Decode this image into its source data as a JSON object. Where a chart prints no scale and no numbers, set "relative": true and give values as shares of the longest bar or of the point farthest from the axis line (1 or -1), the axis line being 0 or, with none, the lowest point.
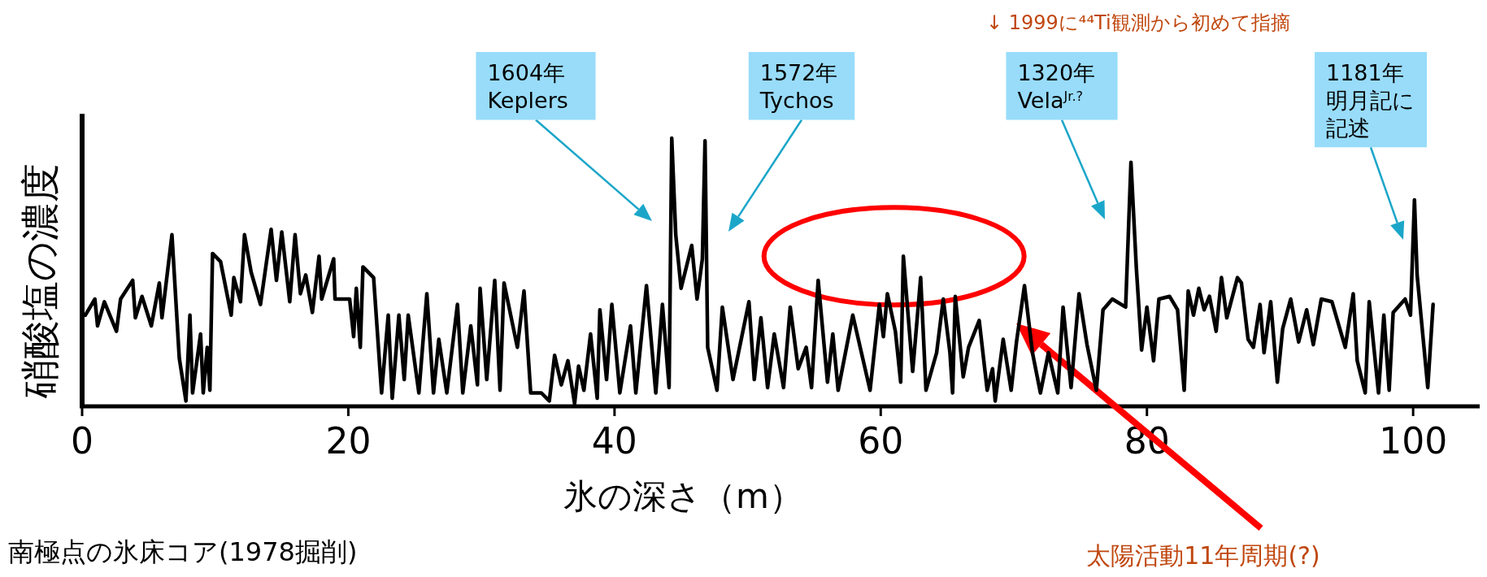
{
  "chart_data": {
    "type": "line",
    "relative": true,
    "xlabel": "氷の深さ（m）",
    "ylabel": "硝酸塩の濃度",
    "xlim": [
      0,
      105
    ],
    "xticks": [
      0,
      20,
      40,
      60,
      80,
      100
    ],
    "grid": false,
    "marker": "none",
    "line_style": "solid",
    "x": [
      0.24,
      0.96,
      1.16,
      1.67,
      2.58,
      2.89,
      3.8,
      4.0,
      4.5,
      5.2,
      5.8,
      6.0,
      6.75,
      7.3,
      7.8,
      8.1,
      8.3,
      8.9,
      9.1,
      9.4,
      9.6,
      9.8,
      10.4,
      11.2,
      11.4,
      11.9,
      12.2,
      12.7,
      13.4,
      14.2,
      14.6,
      15.0,
      15.6,
      16.0,
      16.4,
      16.8,
      17.3,
      17.8,
      18.0,
      18.9,
      19.0,
      20.1,
      20.4,
      20.6,
      20.9,
      21.1,
      21.9,
      22.5,
      23.0,
      23.3,
      23.8,
      24.2,
      24.5,
      25.3,
      25.9,
      26.4,
      26.8,
      27.4,
      28.2,
      28.6,
      29.2,
      29.7,
      29.9,
      30.4,
      31.0,
      31.4,
      31.7,
      32.7,
      33.2,
      33.7,
      34.5,
      35.1,
      35.5,
      36.0,
      36.5,
      37.0,
      37.3,
      37.7,
      38.2,
      38.7,
      38.9,
      39.4,
      39.8,
      40.4,
      41.2,
      41.6,
      42.4,
      43.1,
      43.6,
      44.1,
      44.3,
      44.6,
      45.0,
      45.8,
      46.2,
      46.6,
      46.8,
      47.0,
      47.7,
      48.1,
      48.9,
      50.1,
      50.5,
      51.0,
      51.5,
      52.0,
      52.7,
      53.2,
      53.8,
      54.4,
      54.8,
      55.3,
      56.0,
      56.4,
      56.8,
      57.9,
      59.2,
      59.9,
      60.2,
      60.5,
      61.1,
      61.5,
      61.7,
      62.4,
      63.0,
      63.4,
      64.2,
      64.7,
      65.2,
      65.4,
      65.6,
      66.2,
      66.6,
      67.4,
      68.0,
      68.4,
      68.6,
      69.2,
      69.8,
      70.2,
      70.8,
      71.4,
      72.0,
      72.6,
      73.3,
      73.7,
      74.3,
      74.9,
      75.5,
      76.2,
      76.7,
      77.4,
      78.4,
      78.8,
      79.2,
      79.6,
      80.0,
      80.5,
      80.9,
      81.7,
      82.3,
      82.8,
      83.1,
      83.5,
      83.9,
      84.3,
      84.7,
      85.2,
      85.6,
      86.0,
      86.8,
      87.1,
      87.6,
      88.0,
      88.5,
      88.8,
      89.3,
      89.8,
      90.2,
      90.8,
      91.4,
      92.0,
      92.5,
      93.1,
      93.9,
      94.9,
      95.5,
      95.8,
      96.4,
      96.7,
      97.4,
      97.8,
      98.2,
      98.5,
      99.4,
      99.8,
      100.1,
      100.3,
      101.1,
      101.5
    ],
    "series": [
      {
        "color": "#000000",
        "values": [
          0.34,
          0.4,
          0.3,
          0.39,
          0.28,
          0.4,
          0.47,
          0.33,
          0.41,
          0.3,
          0.46,
          0.33,
          0.64,
          0.18,
          0.02,
          0.34,
          0.05,
          0.27,
          0.05,
          0.22,
          0.06,
          0.57,
          0.54,
          0.34,
          0.48,
          0.39,
          0.64,
          0.5,
          0.38,
          0.66,
          0.47,
          0.65,
          0.39,
          0.64,
          0.42,
          0.49,
          0.35,
          0.56,
          0.4,
          0.55,
          0.4,
          0.4,
          0.26,
          0.44,
          0.22,
          0.52,
          0.48,
          0.05,
          0.34,
          0.03,
          0.34,
          0.1,
          0.34,
          0.05,
          0.42,
          0.05,
          0.25,
          0.05,
          0.38,
          0.05,
          0.3,
          0.08,
          0.44,
          0.1,
          0.47,
          0.06,
          0.46,
          0.22,
          0.43,
          0.05,
          0.05,
          0.02,
          0.19,
          0.08,
          0.17,
          0.01,
          0.15,
          0.06,
          0.27,
          0.03,
          0.36,
          0.1,
          0.38,
          0.05,
          0.3,
          0.05,
          0.45,
          0.05,
          0.38,
          0.07,
          1,
          0.64,
          0.44,
          0.6,
          0.4,
          0.55,
          0.99,
          0.22,
          0.06,
          0.37,
          0.1,
          0.39,
          0.1,
          0.33,
          0.07,
          0.27,
          0.07,
          0.37,
          0.14,
          0.22,
          0.07,
          0.47,
          0.09,
          0.27,
          0.06,
          0.34,
          0.06,
          0.38,
          0.26,
          0.42,
          0.28,
          0.09,
          0.56,
          0.13,
          0.48,
          0.06,
          0.2,
          0.4,
          0.2,
          0.05,
          0.41,
          0.11,
          0.22,
          0.32,
          0.06,
          0.14,
          0.02,
          0.25,
          0.06,
          0.24,
          0.45,
          0.2,
          0.05,
          0.2,
          0.05,
          0.37,
          0.07,
          0.42,
          0.23,
          0.06,
          0.36,
          0.4,
          0.37,
          0.91,
          0.52,
          0.21,
          0.37,
          0.17,
          0.4,
          0.41,
          0.36,
          0.06,
          0.43,
          0.34,
          0.44,
          0.36,
          0.41,
          0.28,
          0.48,
          0.33,
          0.48,
          0.46,
          0.25,
          0.22,
          0.38,
          0.2,
          0.39,
          0.09,
          0.29,
          0.4,
          0.24,
          0.36,
          0.23,
          0.4,
          0.39,
          0.22,
          0.42,
          0.17,
          0.05,
          0.39,
          0.05,
          0.34,
          0.06,
          0.35,
          0.4,
          0.34,
          0.77,
          0.49,
          0.07,
          0.38
        ]
      }
    ],
    "annotations": [
      "1604年\nKeplers",
      "1572年\nTychos",
      "1320年\nVela$^{Jr.?}$",
      "1181年明月記に記述",
      "↓ 1999に⁴⁴Ti観測から初めて指摘",
      "南極点の氷床コア(1978掘削)",
      "太陽活動11年周期(?)"
    ]
  }
}
